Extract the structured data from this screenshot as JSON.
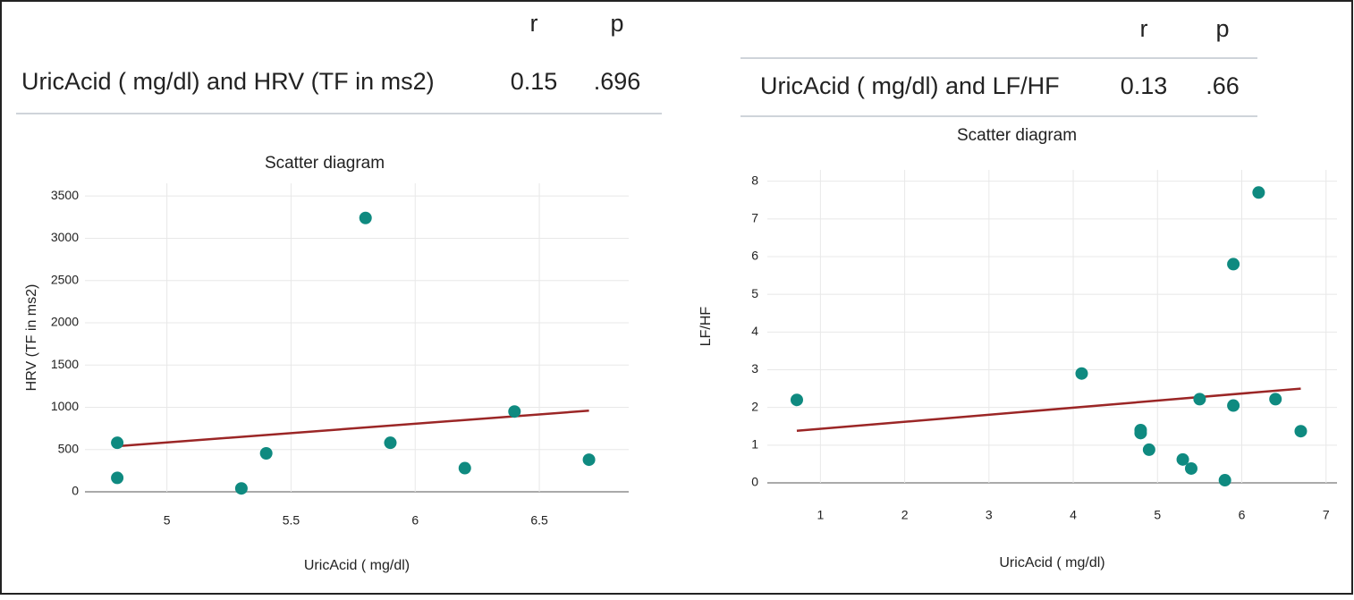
{
  "tables": [
    {
      "header": [
        "r",
        "p"
      ],
      "rows": [
        [
          "UricAcid ( mg/dl) and HRV (TF in ms2)",
          "0.15",
          ".696"
        ]
      ]
    },
    {
      "header": [
        "r",
        "p"
      ],
      "rows": [
        [
          "UricAcid ( mg/dl) and LF/HF",
          "0.13",
          ".66"
        ]
      ]
    }
  ],
  "chart_data": [
    {
      "type": "scatter",
      "title": "Scatter diagram",
      "x_label": "UricAcid ( mg/dl)",
      "y_label": "HRV (TF in ms2)",
      "x": [
        4.8,
        4.8,
        5.3,
        5.4,
        5.8,
        5.9,
        6.2,
        6.4,
        6.7
      ],
      "values": [
        580,
        165,
        40,
        455,
        3240,
        580,
        280,
        950,
        380
      ],
      "color": "#0f8a80",
      "fit_line": {
        "x": [
          4.8,
          6.7
        ],
        "values": [
          540,
          960
        ],
        "color": "#9b2626"
      },
      "xlim": [
        4.67,
        6.86
      ],
      "xticks": [
        5,
        5.5,
        6,
        6.5
      ],
      "ylim": [
        0,
        3650
      ],
      "yticks": [
        0,
        500,
        1000,
        1500,
        2000,
        2500,
        3000,
        3500
      ],
      "grid": true
    },
    {
      "type": "scatter",
      "title": "Scatter diagram",
      "x_label": "UricAcid ( mg/dl)",
      "y_label": "LF/HF",
      "x": [
        0.72,
        4.1,
        4.8,
        4.8,
        4.9,
        5.3,
        5.4,
        5.5,
        5.8,
        5.9,
        5.9,
        6.2,
        6.4,
        6.7
      ],
      "values": [
        2.2,
        2.9,
        1.4,
        1.32,
        0.88,
        0.62,
        0.38,
        2.22,
        0.07,
        5.8,
        2.05,
        7.7,
        2.22,
        1.37
      ],
      "color": "#0f8a80",
      "fit_line": {
        "x": [
          0.72,
          6.7
        ],
        "values": [
          1.38,
          2.5
        ],
        "color": "#9b2626"
      },
      "xlim": [
        0.37,
        7.13
      ],
      "xticks": [
        1,
        2,
        3,
        4,
        5,
        6,
        7
      ],
      "ylim": [
        0,
        8.3
      ],
      "yticks": [
        0,
        1,
        2,
        3,
        4,
        5,
        6,
        7,
        8
      ],
      "grid": true
    }
  ]
}
